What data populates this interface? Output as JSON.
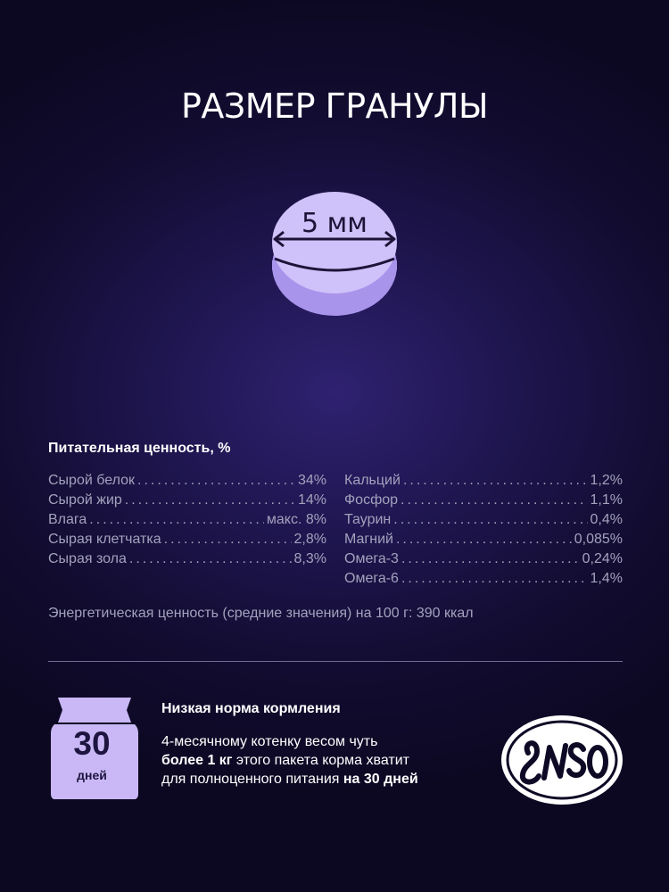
{
  "title": "РАЗМЕР ГРАНУЛЫ",
  "granule": {
    "size_label": "5 мм"
  },
  "nutrition": {
    "heading": "Питательная ценность, %",
    "left": [
      {
        "label": "Сырой белок",
        "value": "34%"
      },
      {
        "label": "Сырой жир",
        "value": "14%"
      },
      {
        "label": "Влага",
        "value": "макс. 8%"
      },
      {
        "label": "Сырая клетчатка",
        "value": "2,8%"
      },
      {
        "label": "Сырая зола",
        "value": "8,3%"
      }
    ],
    "right": [
      {
        "label": "Кальций",
        "value": "1,2%"
      },
      {
        "label": "Фосфор",
        "value": "1,1%"
      },
      {
        "label": "Таурин",
        "value": "0,4%"
      },
      {
        "label": "Магний",
        "value": "0,085%"
      },
      {
        "label": "Омега-3",
        "value": "0,24%"
      },
      {
        "label": "Омега-6",
        "value": "1,4%"
      }
    ],
    "energy": "Энергетическая ценность (средние значения) на 100 г: 390 ккал"
  },
  "feeding": {
    "bag_number": "30",
    "bag_unit": "дней",
    "title": "Низкая норма кормления",
    "text_1": "4-месячному котенку весом чуть ",
    "text_bold_1": "более 1 кг",
    "text_2": " этого пакета корма хватит для полноценного питания ",
    "text_bold_2": "на 30 дней"
  },
  "logo": {
    "text": "ENSO"
  },
  "colors": {
    "background": "#140e36",
    "accent_lavender": "#c9b8f5",
    "text_muted": "#a3a2bd",
    "text_white": "#ffffff"
  }
}
